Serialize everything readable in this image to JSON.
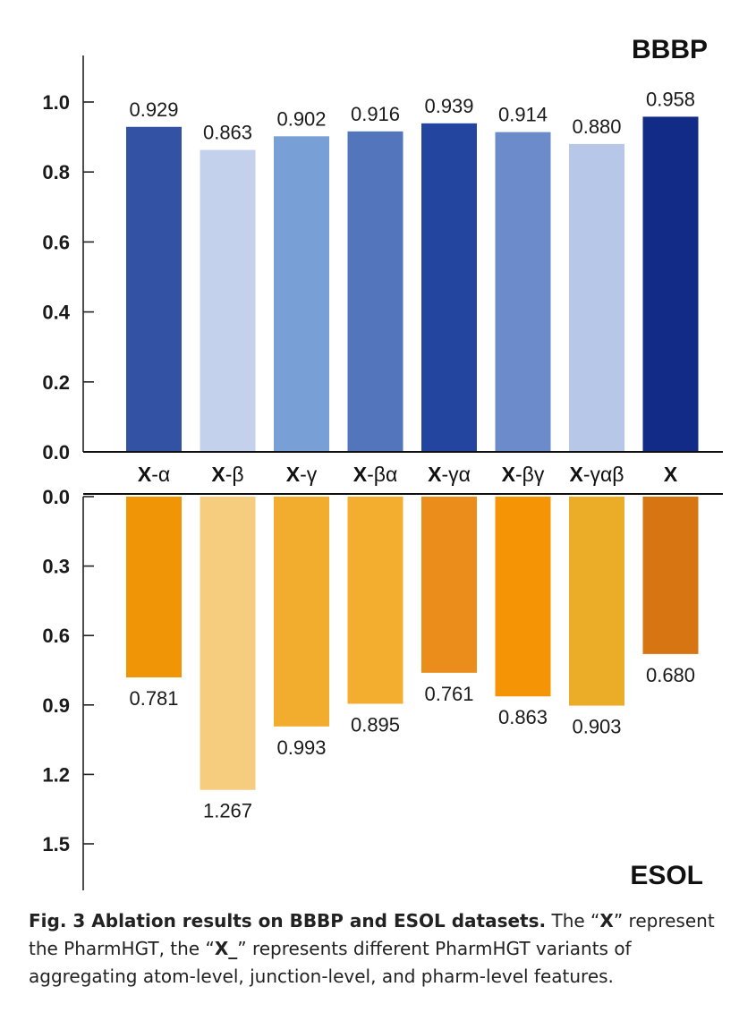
{
  "chart_data": {
    "type": "bar",
    "categories": [
      {
        "prefix": "X",
        "suffix": "-α"
      },
      {
        "prefix": "X",
        "suffix": "-β"
      },
      {
        "prefix": "X",
        "suffix": "-γ"
      },
      {
        "prefix": "X",
        "suffix": "-βα"
      },
      {
        "prefix": "X",
        "suffix": "-γα"
      },
      {
        "prefix": "X",
        "suffix": "-βγ"
      },
      {
        "prefix": "X",
        "suffix": "-γαβ"
      },
      {
        "prefix": "X",
        "suffix": ""
      }
    ],
    "panels": [
      {
        "name": "BBBP",
        "values": [
          0.929,
          0.863,
          0.902,
          0.916,
          0.939,
          0.914,
          0.88,
          0.958
        ],
        "labels": [
          "0.929",
          "0.863",
          "0.902",
          "0.916",
          "0.939",
          "0.914",
          "0.880",
          "0.958"
        ],
        "ylim": [
          0,
          1.0
        ],
        "yticks": [
          "0.0",
          "0.2",
          "0.4",
          "0.6",
          "0.8",
          "1.0"
        ],
        "direction": "up",
        "colors": [
          "#3352a3",
          "#c4d1ec",
          "#789fd6",
          "#5375bc",
          "#2345a0",
          "#6b8bcb",
          "#b7c7e8",
          "#122b86"
        ]
      },
      {
        "name": "ESOL",
        "values": [
          0.781,
          1.267,
          0.993,
          0.895,
          0.761,
          0.863,
          0.903,
          0.68
        ],
        "labels": [
          "0.781",
          "1.267",
          "0.993",
          "0.895",
          "0.761",
          "0.863",
          "0.903",
          "0.680"
        ],
        "ylim": [
          0,
          1.5
        ],
        "yticks": [
          "0.0",
          "0.3",
          "0.6",
          "0.9",
          "1.2",
          "1.5"
        ],
        "direction": "down",
        "colors": [
          "#f09505",
          "#f6cd7e",
          "#f2ac2e",
          "#f3ae30",
          "#ea8d1b",
          "#f59505",
          "#ebac28",
          "#d67512"
        ]
      }
    ]
  },
  "caption": {
    "title": "Fig. 3 Ablation results on BBBP and ESOL datasets.",
    "t1": " The “",
    "x1": "X",
    "t2": "” represent the PharmHGT, the “",
    "x2": "X_",
    "t3": "” represents different PharmHGT variants of aggregating atom-level, junction-level, and pharm-level features."
  }
}
